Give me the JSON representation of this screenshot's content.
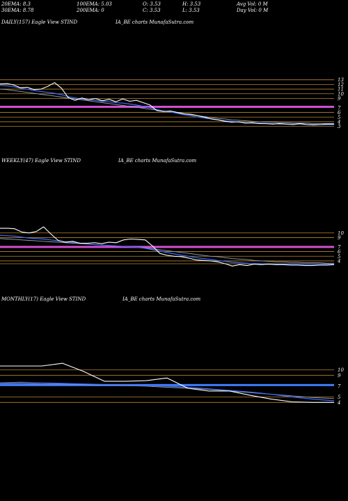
{
  "stats": {
    "row1": [
      "20EMA: 8.3",
      "100EMA: 5.03",
      "O: 3.53",
      "H: 3.53",
      "Avg Vol: 0  M"
    ],
    "row2": [
      "30EMA: 8.78",
      "200EMA: 0",
      "C: 3.53",
      "L: 3.53",
      "Day Vol: 0  M"
    ]
  },
  "colors": {
    "background": "#000000",
    "price": "#ffffff",
    "ema_short": "#3a6cff",
    "ema_long": "#9aa0b0",
    "level": "#b8862e",
    "band": "#d24fd2",
    "band_monthly": "#3f7bff"
  },
  "chart_data": [
    {
      "type": "line",
      "title": "DAILY(157) Eagle  View  STIND",
      "title_right": "IA_BE charts MunafaSutra.com",
      "yticks": [
        "13",
        "12",
        "11",
        "10",
        "9",
        "7",
        "6",
        "5",
        "4",
        "3"
      ],
      "ylim": [
        2.5,
        14
      ],
      "band": 7.2,
      "levels": [
        13,
        12,
        11,
        10,
        9,
        6,
        5,
        4,
        3
      ],
      "price": [
        12.1,
        12.2,
        11.9,
        11.3,
        11.4,
        10.9,
        11.0,
        11.6,
        12.4,
        11.2,
        9.2,
        8.6,
        9.1,
        8.7,
        9.0,
        8.5,
        8.8,
        8.3,
        8.9,
        8.4,
        8.6,
        8.1,
        7.6,
        6.4,
        6.2,
        6.3,
        6.0,
        5.7,
        5.6,
        5.3,
        5.0,
        4.6,
        4.4,
        4.1,
        3.9,
        4.0,
        3.7,
        3.8,
        3.6,
        3.6,
        3.5,
        3.6,
        3.5,
        3.4,
        3.6,
        3.4,
        3.3,
        3.4,
        3.5,
        3.5
      ],
      "ema_short": [
        11.8,
        11.7,
        11.5,
        11.2,
        11.0,
        10.7,
        10.5,
        10.3,
        10.1,
        9.8,
        9.4,
        9.1,
        8.9,
        8.7,
        8.6,
        8.4,
        8.3,
        8.1,
        8.0,
        7.8,
        7.6,
        7.3,
        7.0,
        6.6,
        6.3,
        6.1,
        5.8,
        5.5,
        5.3,
        5.0,
        4.8,
        4.6,
        4.4,
        4.2,
        4.1,
        3.9,
        3.8,
        3.7,
        3.7,
        3.6,
        3.6,
        3.5,
        3.5,
        3.5,
        3.5,
        3.4,
        3.4,
        3.4,
        3.4,
        3.4
      ],
      "ema_long": [
        11.0,
        10.9,
        10.7,
        10.5,
        10.3,
        10.1,
        9.9,
        9.7,
        9.5,
        9.3,
        9.1,
        8.9,
        8.7,
        8.5,
        8.3,
        8.1,
        7.9,
        7.7,
        7.5,
        7.3,
        7.1,
        6.9,
        6.7,
        6.5,
        6.3,
        6.1,
        5.9,
        5.7,
        5.5,
        5.3,
        5.1,
        4.9,
        4.7,
        4.6,
        4.4,
        4.3,
        4.2,
        4.1,
        4.0,
        3.9,
        3.9,
        3.8,
        3.8,
        3.7,
        3.7,
        3.7,
        3.6,
        3.6,
        3.6,
        3.6
      ]
    },
    {
      "type": "line",
      "title": "WEEKLY(47) Eagle  View  STIND",
      "title_right": "IA_BE charts MunafaSutra.com",
      "yticks": [
        "10",
        "9",
        "7",
        "6",
        "5",
        "4"
      ],
      "ylim": [
        2.5,
        12.5
      ],
      "band": 7.0,
      "levels": [
        10,
        9,
        6,
        5,
        4,
        3.4
      ],
      "price": [
        11.0,
        11.0,
        10.9,
        10.2,
        10.0,
        10.3,
        11.3,
        9.8,
        8.4,
        8.0,
        8.2,
        7.8,
        7.8,
        7.9,
        7.7,
        8.0,
        7.9,
        8.5,
        8.7,
        8.6,
        8.5,
        7.2,
        5.6,
        5.2,
        5.0,
        4.9,
        4.6,
        4.2,
        4.1,
        4.0,
        3.8,
        3.4,
        2.9,
        3.2,
        3.0,
        3.3,
        3.2,
        3.3,
        3.2,
        3.2,
        3.1,
        3.1,
        3.0,
        3.0,
        3.1,
        3.1,
        3.2
      ],
      "ema_short": [
        9.5,
        9.4,
        9.3,
        9.1,
        8.9,
        8.8,
        8.7,
        8.5,
        8.3,
        8.1,
        8.0,
        7.8,
        7.7,
        7.5,
        7.4,
        7.3,
        7.2,
        7.1,
        7.0,
        6.9,
        6.7,
        6.4,
        6.1,
        5.8,
        5.5,
        5.2,
        5.0,
        4.7,
        4.5,
        4.3,
        4.1,
        3.9,
        3.7,
        3.6,
        3.5,
        3.4,
        3.4,
        3.3,
        3.3,
        3.3,
        3.3,
        3.3,
        3.3,
        3.3,
        3.3,
        3.3,
        3.3
      ],
      "ema_long": [
        8.8,
        8.7,
        8.6,
        8.5,
        8.4,
        8.3,
        8.2,
        8.1,
        8.0,
        7.9,
        7.8,
        7.7,
        7.6,
        7.5,
        7.4,
        7.3,
        7.2,
        7.1,
        7.0,
        6.9,
        6.8,
        6.6,
        6.4,
        6.2,
        6.0,
        5.8,
        5.6,
        5.4,
        5.2,
        5.0,
        4.9,
        4.7,
        4.5,
        4.4,
        4.3,
        4.1,
        4.0,
        3.9,
        3.8,
        3.8,
        3.7,
        3.7,
        3.6,
        3.6,
        3.6,
        3.5,
        3.5
      ]
    },
    {
      "type": "line",
      "title": "MONTHLY(17) Eagle  View  STIND",
      "title_right": "IA_BE charts MunafaSutra.com",
      "yticks": [
        "10",
        "9",
        "7",
        "5",
        "4"
      ],
      "ylim": [
        2.5,
        12.5
      ],
      "band": 7.2,
      "levels": [
        10,
        9,
        5,
        4
      ],
      "price": [
        10.7,
        10.7,
        10.7,
        11.2,
        9.7,
        7.9,
        7.9,
        8.0,
        8.5,
        6.6,
        6.1,
        6.1,
        5.3,
        4.6,
        4.1,
        4.0,
        4.0
      ],
      "ema_short": [
        7.6,
        7.7,
        7.6,
        7.5,
        7.4,
        7.3,
        7.2,
        7.1,
        7.0,
        6.8,
        6.5,
        6.2,
        5.9,
        5.5,
        5.0,
        4.6,
        4.3
      ],
      "ema_long": [
        7.5,
        7.5,
        7.4,
        7.4,
        7.3,
        7.2,
        7.1,
        7.0,
        6.8,
        6.6,
        6.4,
        6.1,
        5.8,
        5.5,
        5.2,
        4.9,
        4.7
      ]
    }
  ]
}
